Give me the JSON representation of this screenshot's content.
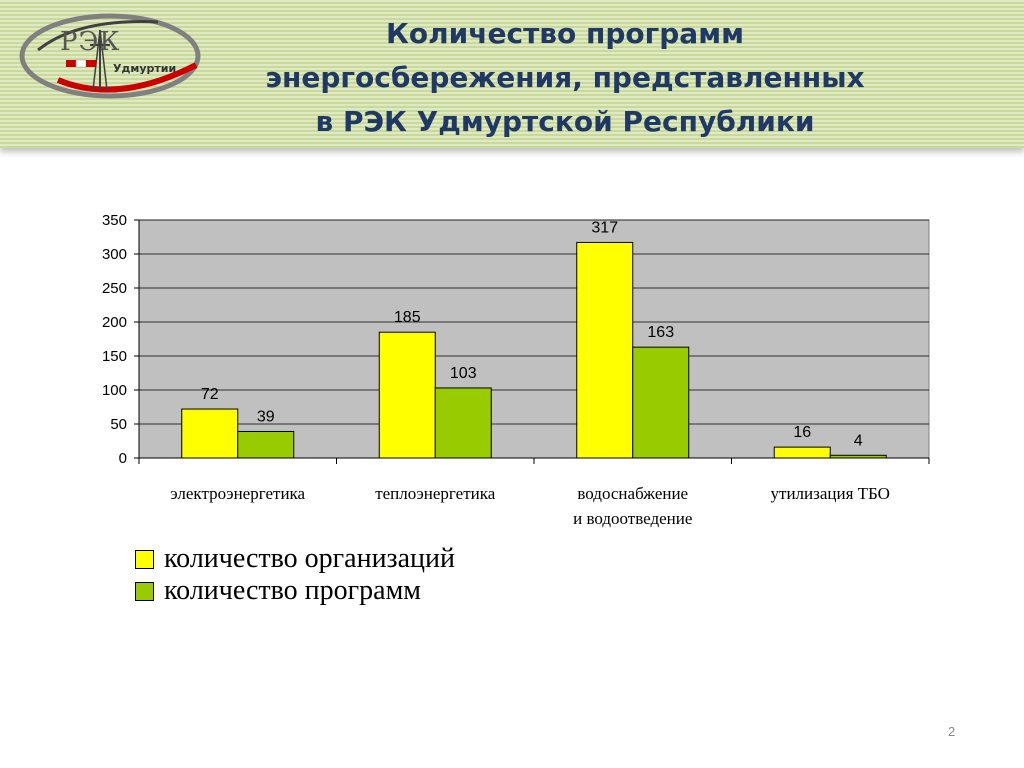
{
  "slide": {
    "title_lines": [
      "Количество программ",
      "энергосбережения, представленных",
      "в РЭК Удмуртской Республики"
    ],
    "page_number": "2"
  },
  "logo": {
    "main_text": "РЭК",
    "sub_text": "Удмуртии"
  },
  "colors": {
    "header_title": "#1f3864",
    "plot_background": "#c0c0c0",
    "series_organizations": "#ffff00",
    "series_programs": "#99cc00"
  },
  "chart_data": {
    "type": "bar",
    "categories": [
      [
        "электроэнергетика"
      ],
      [
        "теплоэнергетика"
      ],
      [
        "водоснабжение",
        "и водоотведение"
      ],
      [
        "утилизация ТБО"
      ]
    ],
    "series": [
      {
        "name": "количество организаций",
        "color": "#ffff00",
        "values": [
          72,
          185,
          317,
          16
        ]
      },
      {
        "name": "количество программ",
        "color": "#99cc00",
        "values": [
          39,
          103,
          163,
          4
        ]
      }
    ],
    "ylim": [
      0,
      350
    ],
    "yticks": [
      0,
      50,
      100,
      150,
      200,
      250,
      300,
      350
    ],
    "grid": true,
    "legend_position": "bottom-left"
  }
}
